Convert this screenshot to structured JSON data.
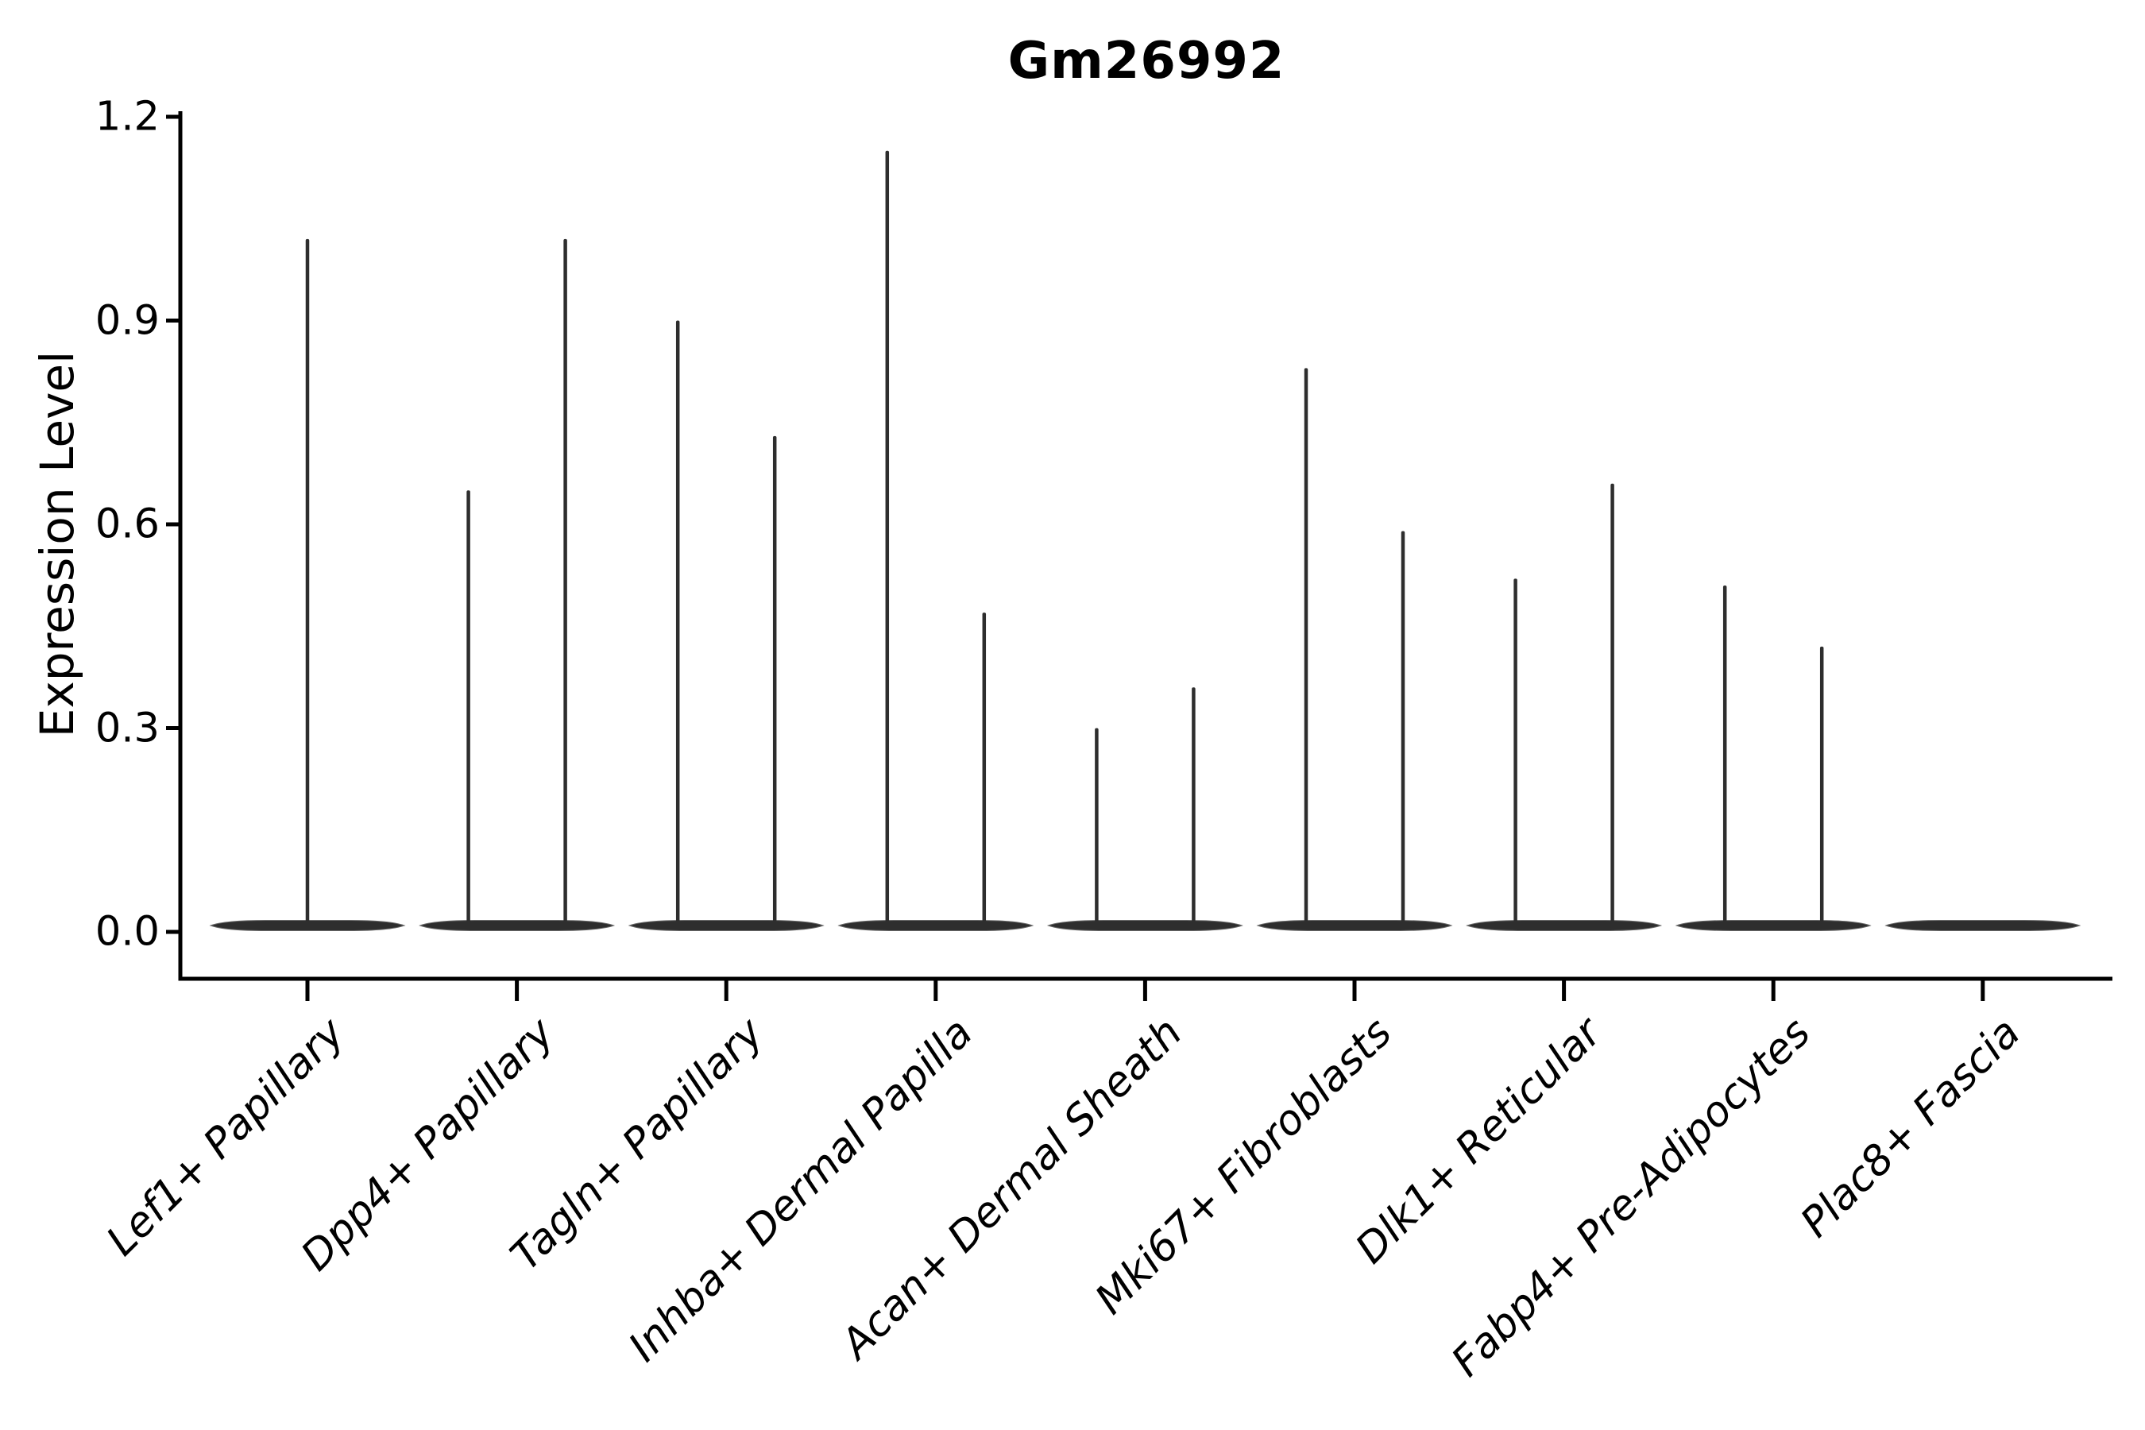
{
  "chart_data": {
    "type": "violin",
    "title": "Gm26992",
    "ylabel": "Expression Level",
    "xlabel": "",
    "ylim": [
      0.0,
      1.2
    ],
    "yticks": [
      "0.0",
      "0.3",
      "0.6",
      "0.9",
      "1.2"
    ],
    "ytick_values": [
      0.0,
      0.3,
      0.6,
      0.9,
      1.2
    ],
    "grid": false,
    "legend": "none",
    "categories": [
      "Lef1+ Papillary",
      "Dpp4+ Papillary",
      "Tagln+ Papillary",
      "Inhba+ Dermal Papilla",
      "Acan+ Dermal Sheath",
      "Mki67+ Fibroblasts",
      "Dlk1+ Reticular",
      "Fabp4+ Pre-Adipocytes",
      "Plac8+ Fascia"
    ],
    "violins": [
      {
        "category": "Lef1+ Papillary",
        "split": false,
        "max_expression": [
          1.02
        ]
      },
      {
        "category": "Dpp4+ Papillary",
        "split": true,
        "max_expression": [
          0.65,
          1.02
        ]
      },
      {
        "category": "Tagln+ Papillary",
        "split": true,
        "max_expression": [
          0.9,
          0.73
        ]
      },
      {
        "category": "Inhba+ Dermal Papilla",
        "split": true,
        "max_expression": [
          1.15,
          0.47
        ]
      },
      {
        "category": "Acan+ Dermal Sheath",
        "split": true,
        "max_expression": [
          0.3,
          0.36
        ]
      },
      {
        "category": "Mki67+ Fibroblasts",
        "split": true,
        "max_expression": [
          0.83,
          0.59
        ]
      },
      {
        "category": "Dlk1+ Reticular",
        "split": true,
        "max_expression": [
          0.52,
          0.66
        ]
      },
      {
        "category": "Fabp4+ Pre-Adipocytes",
        "split": true,
        "max_expression": [
          0.51,
          0.42
        ]
      },
      {
        "category": "Plac8+ Fascia",
        "split": false,
        "max_expression": []
      }
    ],
    "colors": {
      "violin": "#2e2e2e",
      "axis": "#000000",
      "text": "#000000",
      "background": "#ffffff"
    }
  }
}
